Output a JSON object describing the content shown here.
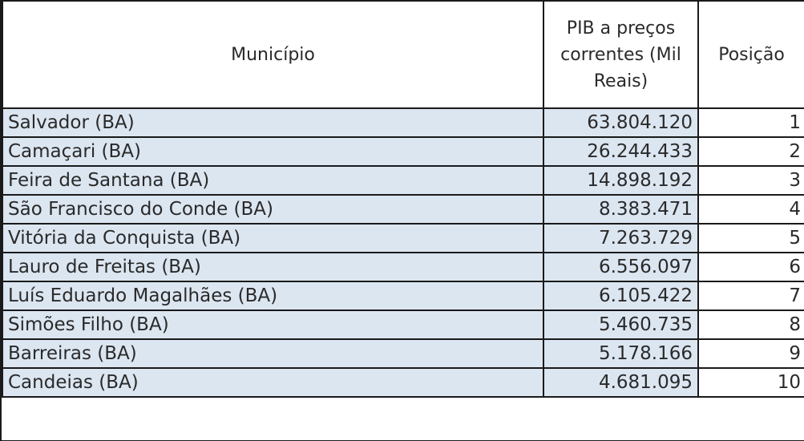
{
  "table": {
    "headers": {
      "municipio": "Município",
      "pib": "PIB a preços correntes (Mil Reais)",
      "posicao": "Posição"
    },
    "colors": {
      "row_fill": "#dce6f1",
      "border": "#1a1a1a",
      "text": "#2a2a2a"
    },
    "rows": [
      {
        "municipio": "Salvador (BA)",
        "pib": "63.804.120",
        "posicao": "1"
      },
      {
        "municipio": "Camaçari (BA)",
        "pib": "26.244.433",
        "posicao": "2"
      },
      {
        "municipio": "Feira de Santana (BA)",
        "pib": "14.898.192",
        "posicao": "3"
      },
      {
        "municipio": "São Francisco do Conde (BA)",
        "pib": "8.383.471",
        "posicao": "4"
      },
      {
        "municipio": "Vitória da Conquista (BA)",
        "pib": "7.263.729",
        "posicao": "5"
      },
      {
        "municipio": "Lauro de Freitas (BA)",
        "pib": "6.556.097",
        "posicao": "6"
      },
      {
        "municipio": "Luís Eduardo Magalhães (BA)",
        "pib": "6.105.422",
        "posicao": "7"
      },
      {
        "municipio": "Simões Filho (BA)",
        "pib": "5.460.735",
        "posicao": "8"
      },
      {
        "municipio": "Barreiras (BA)",
        "pib": "5.178.166",
        "posicao": "9"
      },
      {
        "municipio": "Candeias (BA)",
        "pib": "4.681.095",
        "posicao": "10"
      }
    ]
  }
}
